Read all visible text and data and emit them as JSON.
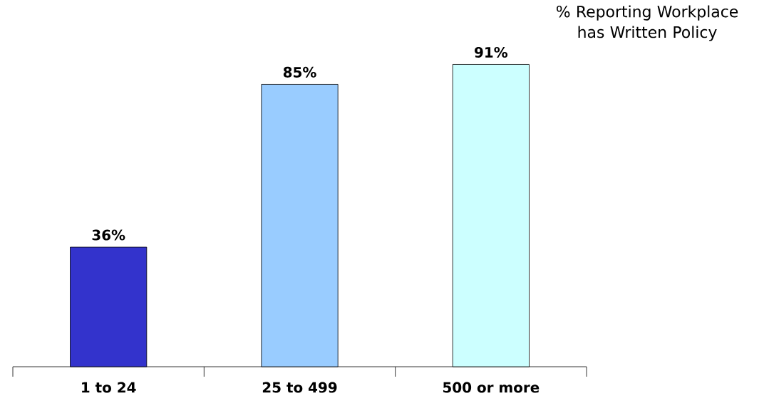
{
  "chart_data": {
    "type": "bar",
    "title": "% Reporting Workplace has Written Policy",
    "categories": [
      "1 to 24",
      "25 to 499",
      "500 or more"
    ],
    "values": [
      36,
      85,
      91
    ],
    "colors": [
      "#3333cc",
      "#99ccff",
      "#ccffff"
    ],
    "value_labels": [
      "36%",
      "85%",
      "91%"
    ]
  }
}
